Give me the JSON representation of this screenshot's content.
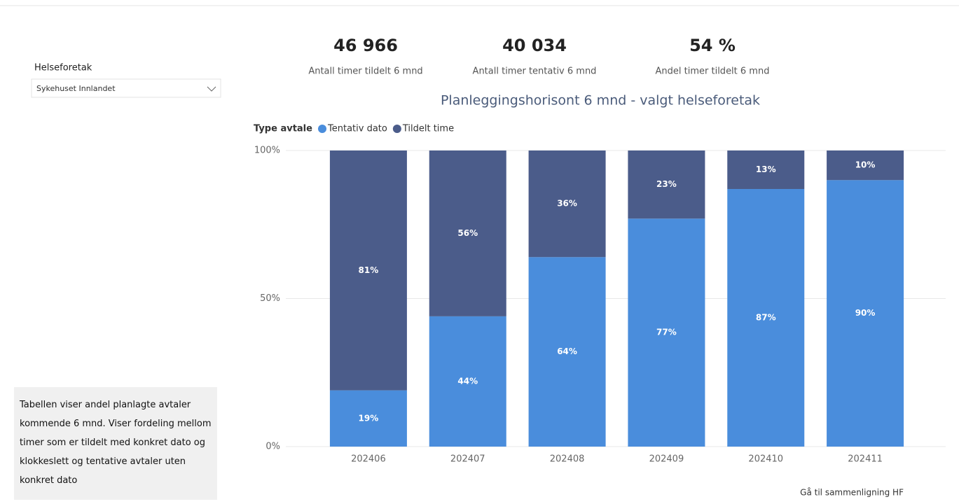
{
  "slicer": {
    "label": "Helseforetak",
    "selected": "Sykehuset Innlandet"
  },
  "kpis": [
    {
      "value": "46 966",
      "label": "Antall timer tildelt 6 mnd"
    },
    {
      "value": "40 034",
      "label": "Antall timer tentativ 6 mnd"
    },
    {
      "value": "54 %",
      "label": "Andel timer tildelt 6 mnd"
    }
  ],
  "note": "Tabellen viser andel planlagte avtaler kommende 6 mnd. Viser fordeling mellom timer som er tildelt med konkret dato og klokkeslett og tentative avtaler uten konkret dato",
  "link": "Gå til sammenligning HF",
  "chart_data": {
    "type": "stacked_bar",
    "title": "Planleggingshorisont 6 mnd - valgt helseforetak",
    "legend_title": "Type avtale",
    "legend": "top-left",
    "categories": [
      "202406",
      "202407",
      "202408",
      "202409",
      "202410",
      "202411"
    ],
    "series": [
      {
        "name": "Tentativ dato",
        "color": "#4a8ddc",
        "values": [
          19,
          44,
          64,
          77,
          87,
          90
        ],
        "value_labels": [
          "19%",
          "44%",
          "64%",
          "77%",
          "87%",
          "90%"
        ]
      },
      {
        "name": "Tildelt time",
        "color": "#4b5c8a",
        "values": [
          81,
          56,
          36,
          23,
          13,
          10
        ],
        "value_labels": [
          "81%",
          "56%",
          "36%",
          "23%",
          "13%",
          "10%"
        ]
      }
    ],
    "ylim": [
      0,
      100
    ],
    "yticks": [
      {
        "value": 0,
        "label": "0%"
      },
      {
        "value": 50,
        "label": "50%"
      },
      {
        "value": 100,
        "label": "100%"
      }
    ],
    "grid": true
  }
}
